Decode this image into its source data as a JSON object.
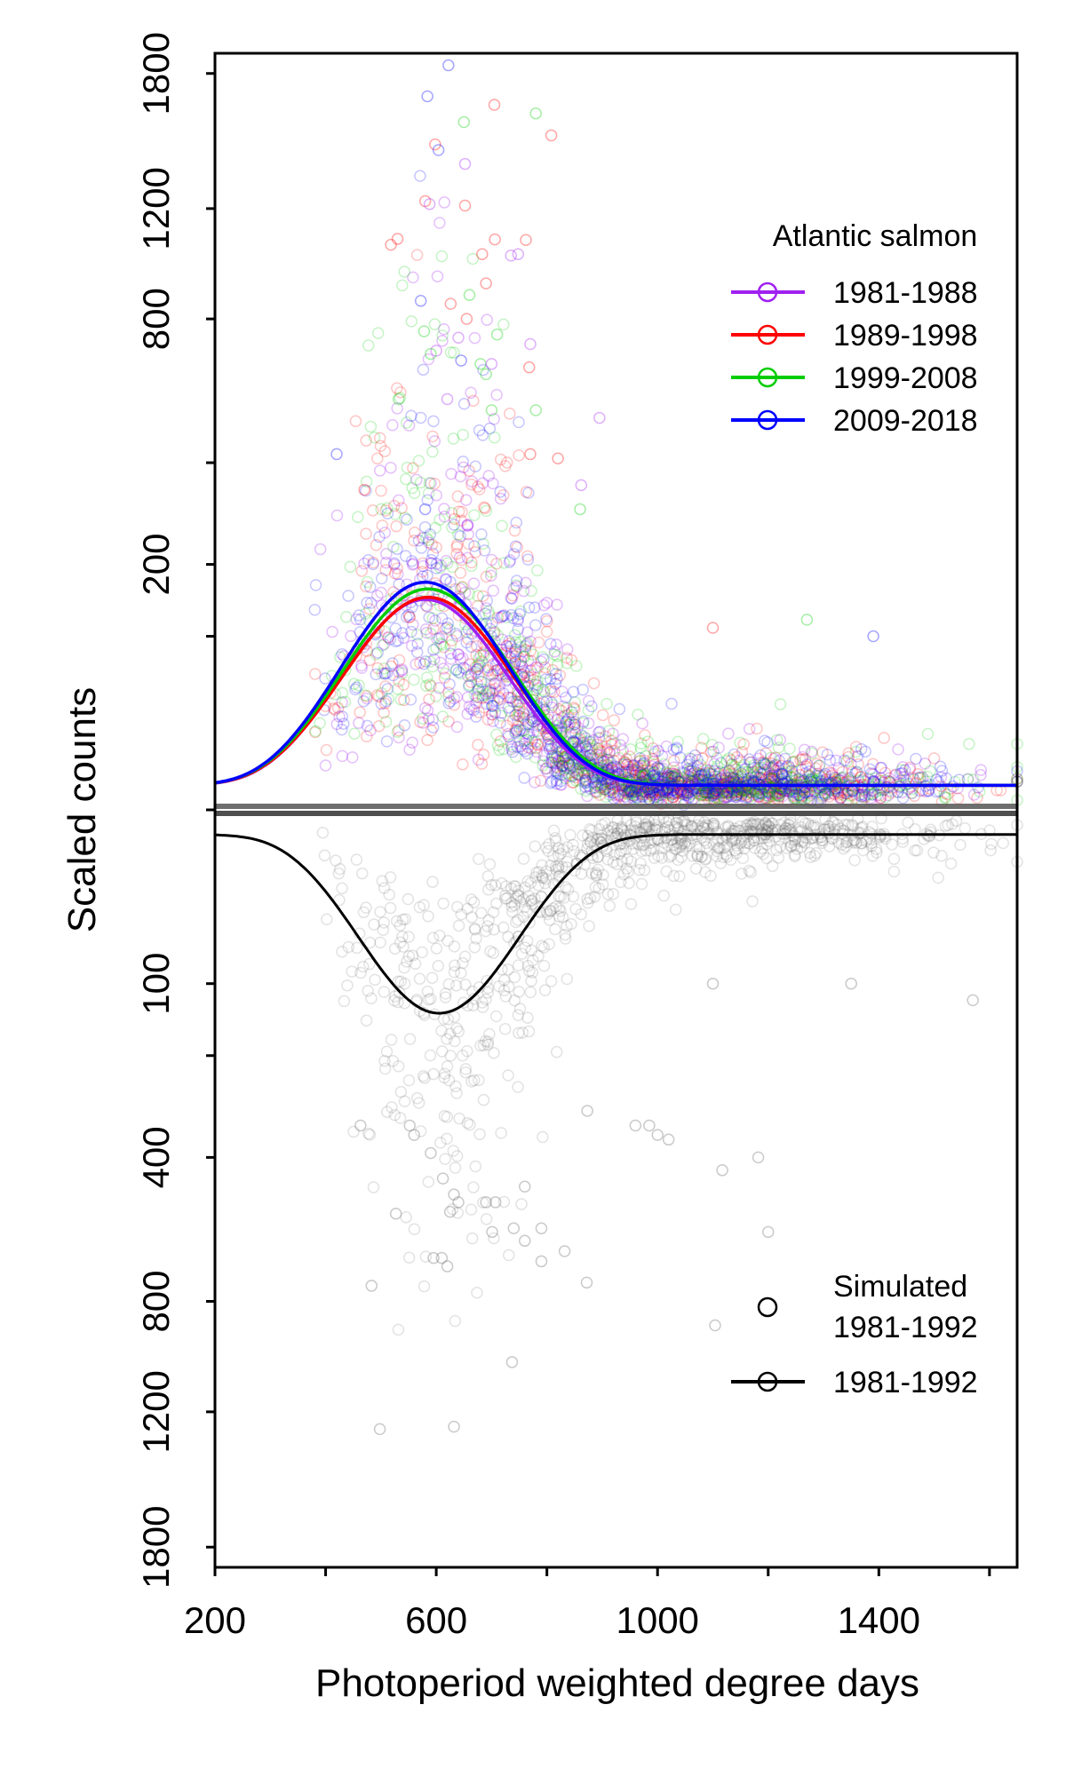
{
  "chart_data": {
    "type": "scatter",
    "xlabel": "Photoperiod weighted degree days",
    "ylabel": "Scaled counts",
    "xlim": [
      200,
      1650
    ],
    "upper_ylim": [
      0,
      1900
    ],
    "lower_ylim": [
      0,
      1900
    ],
    "x_ticks": [
      200,
      400,
      600,
      800,
      1000,
      1200,
      1400,
      1600
    ],
    "x_tick_labels": [
      {
        "x": 200,
        "label": "200"
      },
      {
        "x": 600,
        "label": "600"
      },
      {
        "x": 1000,
        "label": "1000"
      },
      {
        "x": 1400,
        "label": "1400"
      }
    ],
    "y_ticks": [
      {
        "value": 1800,
        "panel": "upper",
        "label": "1800"
      },
      {
        "value": 1200,
        "panel": "upper",
        "label": "1200"
      },
      {
        "value": 800,
        "panel": "upper",
        "label": "800"
      },
      {
        "value": 400,
        "panel": "upper",
        "label": ""
      },
      {
        "value": 200,
        "panel": "upper",
        "label": "200"
      },
      {
        "value": 100,
        "panel": "upper",
        "label": ""
      },
      {
        "value": 0,
        "panel": "upper",
        "label": ""
      },
      {
        "value": 100,
        "panel": "lower",
        "label": "100"
      },
      {
        "value": 200,
        "panel": "lower",
        "label": ""
      },
      {
        "value": 400,
        "panel": "lower",
        "label": "400"
      },
      {
        "value": 800,
        "panel": "lower",
        "label": "800"
      },
      {
        "value": 1200,
        "panel": "lower",
        "label": "1200"
      },
      {
        "value": 1800,
        "panel": "lower",
        "label": "1800"
      }
    ],
    "legend_top": {
      "title": "Atlantic salmon",
      "position": "top-right",
      "entries": [
        {
          "label": "1981-1988",
          "color": "#a020f0"
        },
        {
          "label": "1989-1998",
          "color": "#ff0000"
        },
        {
          "label": "1999-2008",
          "color": "#00cd00"
        },
        {
          "label": "2009-2018",
          "color": "#0000ff"
        }
      ]
    },
    "legend_bottom": {
      "position": "bottom-right",
      "entries": [
        {
          "label_lines": [
            "Simulated",
            "1981-1992"
          ],
          "kind": "points",
          "color": "#000000"
        },
        {
          "label_lines": [
            "1981-1992"
          ],
          "kind": "line",
          "color": "#000000"
        }
      ]
    },
    "series": [
      {
        "name": "1981-1988",
        "color": "#a020f0",
        "panel": "upper",
        "peak": 145,
        "center": 580,
        "width": 110,
        "alpha": 0.28
      },
      {
        "name": "1989-1998",
        "color": "#ff0000",
        "panel": "upper",
        "peak": 148,
        "center": 585,
        "width": 112,
        "alpha": 0.22
      },
      {
        "name": "1999-2008",
        "color": "#00cd00",
        "panel": "upper",
        "peak": 160,
        "center": 585,
        "width": 112,
        "alpha": 0.22
      },
      {
        "name": "2009-2018",
        "color": "#0000ff",
        "panel": "upper",
        "peak": 170,
        "center": 580,
        "width": 110,
        "alpha": 0.22
      },
      {
        "name": "1981-1992",
        "color": "#000000",
        "panel": "lower",
        "peak": 135,
        "center": 605,
        "width": 105,
        "alpha": 0.18
      }
    ],
    "highlight_points": {
      "upper": [
        {
          "x": 622,
          "y": 1840,
          "color": "#0000ff"
        },
        {
          "x": 584,
          "y": 1690,
          "color": "#0000ff"
        },
        {
          "x": 705,
          "y": 1650,
          "color": "#ff0000"
        },
        {
          "x": 780,
          "y": 1610,
          "color": "#00cd00"
        },
        {
          "x": 650,
          "y": 1570,
          "color": "#00cd00"
        },
        {
          "x": 808,
          "y": 1510,
          "color": "#ff0000"
        },
        {
          "x": 598,
          "y": 1470,
          "color": "#ff0000"
        },
        {
          "x": 604,
          "y": 1445,
          "color": "#0000ff"
        },
        {
          "x": 652,
          "y": 1385,
          "color": "#a020f0"
        },
        {
          "x": 580,
          "y": 1230,
          "color": "#ff0000"
        },
        {
          "x": 588,
          "y": 1218,
          "color": "#a020f0"
        },
        {
          "x": 652,
          "y": 1212,
          "color": "#ff0000"
        },
        {
          "x": 530,
          "y": 1082,
          "color": "#ff0000"
        },
        {
          "x": 518,
          "y": 1060,
          "color": "#ff0000"
        },
        {
          "x": 762,
          "y": 1078,
          "color": "#ff0000"
        },
        {
          "x": 706,
          "y": 1080,
          "color": "#ff0000"
        },
        {
          "x": 748,
          "y": 1025,
          "color": "#a020f0"
        },
        {
          "x": 735,
          "y": 1020,
          "color": "#a020f0"
        },
        {
          "x": 683,
          "y": 1025,
          "color": "#ff0000"
        },
        {
          "x": 690,
          "y": 920,
          "color": "#ff0000"
        },
        {
          "x": 660,
          "y": 880,
          "color": "#00cd00"
        },
        {
          "x": 572,
          "y": 860,
          "color": "#0000ff"
        },
        {
          "x": 626,
          "y": 850,
          "color": "#ff0000"
        },
        {
          "x": 655,
          "y": 800,
          "color": "#ff0000"
        },
        {
          "x": 578,
          "y": 760,
          "color": "#00cd00"
        },
        {
          "x": 710,
          "y": 750,
          "color": "#00cd00"
        },
        {
          "x": 640,
          "y": 740,
          "color": "#a020f0"
        },
        {
          "x": 770,
          "y": 720,
          "color": "#a020f0"
        },
        {
          "x": 600,
          "y": 700,
          "color": "#a020f0"
        },
        {
          "x": 590,
          "y": 690,
          "color": "#00cd00"
        },
        {
          "x": 645,
          "y": 670,
          "color": "#0000ff"
        },
        {
          "x": 680,
          "y": 660,
          "color": "#00cd00"
        },
        {
          "x": 700,
          "y": 660,
          "color": "#a020f0"
        },
        {
          "x": 768,
          "y": 650,
          "color": "#ff0000"
        },
        {
          "x": 690,
          "y": 630,
          "color": "#00cd00"
        },
        {
          "x": 532,
          "y": 560,
          "color": "#00cd00"
        },
        {
          "x": 620,
          "y": 560,
          "color": "#a020f0"
        },
        {
          "x": 780,
          "y": 530,
          "color": "#00cd00"
        },
        {
          "x": 700,
          "y": 530,
          "color": "#00cd00"
        },
        {
          "x": 895,
          "y": 510,
          "color": "#a020f0"
        },
        {
          "x": 420,
          "y": 420,
          "color": "#0000ff"
        },
        {
          "x": 820,
          "y": 410,
          "color": "#ff0000"
        },
        {
          "x": 770,
          "y": 420,
          "color": "#ff0000"
        },
        {
          "x": 470,
          "y": 340,
          "color": "#ff0000"
        },
        {
          "x": 862,
          "y": 350,
          "color": "#a020f0"
        },
        {
          "x": 860,
          "y": 300,
          "color": "#00cd00"
        },
        {
          "x": 580,
          "y": 300,
          "color": "#0000ff"
        },
        {
          "x": 1270,
          "y": 120,
          "color": "#00cd00"
        },
        {
          "x": 1390,
          "y": 100,
          "color": "#0000ff"
        },
        {
          "x": 1100,
          "y": 110,
          "color": "#ff0000"
        }
      ],
      "lower": [
        {
          "x": 498,
          "y": 1270
        },
        {
          "x": 632,
          "y": 1260
        },
        {
          "x": 737,
          "y": 1010
        },
        {
          "x": 1104,
          "y": 880
        },
        {
          "x": 483,
          "y": 750
        },
        {
          "x": 872,
          "y": 740
        },
        {
          "x": 620,
          "y": 690
        },
        {
          "x": 790,
          "y": 675
        },
        {
          "x": 832,
          "y": 645
        },
        {
          "x": 595,
          "y": 665
        },
        {
          "x": 610,
          "y": 665
        },
        {
          "x": 760,
          "y": 615
        },
        {
          "x": 701,
          "y": 590
        },
        {
          "x": 790,
          "y": 580
        },
        {
          "x": 1200,
          "y": 590
        },
        {
          "x": 740,
          "y": 580
        },
        {
          "x": 527,
          "y": 540
        },
        {
          "x": 625,
          "y": 535
        },
        {
          "x": 690,
          "y": 510
        },
        {
          "x": 1182,
          "y": 400
        },
        {
          "x": 1117,
          "y": 430
        },
        {
          "x": 612,
          "y": 450
        },
        {
          "x": 632,
          "y": 490
        },
        {
          "x": 640,
          "y": 510
        },
        {
          "x": 707,
          "y": 510
        },
        {
          "x": 760,
          "y": 470
        },
        {
          "x": 590,
          "y": 390
        },
        {
          "x": 552,
          "y": 330
        },
        {
          "x": 560,
          "y": 350
        },
        {
          "x": 1000,
          "y": 350
        },
        {
          "x": 1020,
          "y": 360
        },
        {
          "x": 463,
          "y": 330
        },
        {
          "x": 985,
          "y": 330
        },
        {
          "x": 960,
          "y": 330
        },
        {
          "x": 873,
          "y": 300
        },
        {
          "x": 1100,
          "y": 100
        },
        {
          "x": 1350,
          "y": 100
        },
        {
          "x": 1570,
          "y": 120
        }
      ]
    }
  }
}
